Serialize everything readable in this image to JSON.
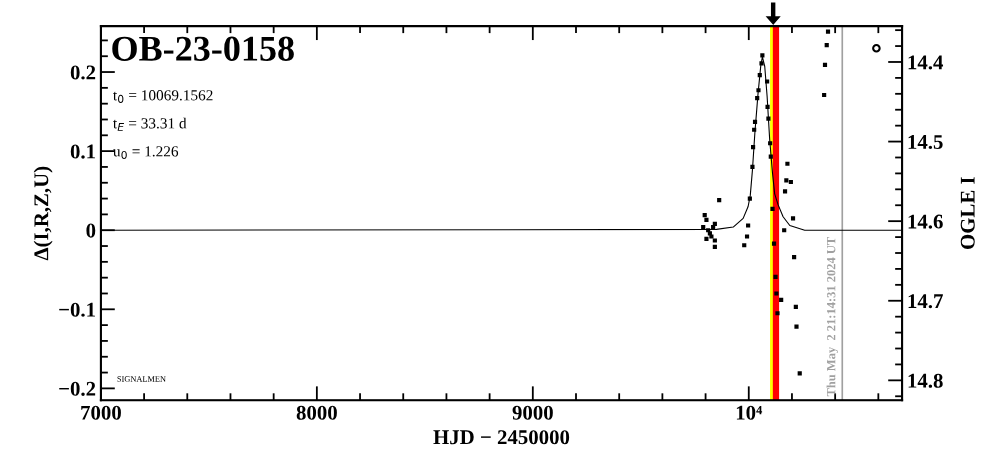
{
  "chart_data": {
    "type": "scatter",
    "title": "OB-23-0158",
    "xlabel": "HJD − 2450000",
    "ylabel": "Δ(I,R,Z,U)",
    "y2label": "OGLE I",
    "annotations": [
      "t$_{0}$ = 10069.1562",
      "t$_{E}$ = 33.31 d",
      "u$_{0}$ = 1.226",
      "SIGNALMEN",
      "Thu May  2 21:14:31 2024 UT"
    ],
    "xlim": [
      7000,
      10710
    ],
    "xticks": [
      7000,
      8000,
      9000,
      {
        "value": 10000,
        "label": "10⁴"
      }
    ],
    "ylim": [
      -0.215,
      0.258
    ],
    "yticks": [
      -0.2,
      -0.1,
      0,
      0.1,
      0.2
    ],
    "y2lim": [
      14.825,
      14.355
    ],
    "y2ticks": [
      14.4,
      14.5,
      14.6,
      14.7,
      14.8
    ],
    "grid": false,
    "legend": false,
    "series": [
      {
        "type": "line",
        "color": "#000000",
        "marker": "none",
        "line_style": "solid",
        "x": [
          7000,
          9850,
          9928,
          9974,
          9997,
          10007,
          10017,
          10028,
          10043,
          10056,
          10063,
          10074,
          10085,
          10097,
          10110,
          10120,
          10136,
          10159,
          10190,
          10259,
          10710
        ],
        "values": [
          0,
          0.001,
          0.004,
          0.015,
          0.03,
          0.044,
          0.076,
          0.122,
          0.173,
          0.209,
          0.219,
          0.207,
          0.169,
          0.114,
          0.072,
          0.046,
          0.032,
          0.017,
          0.006,
          0,
          0
        ]
      },
      {
        "color": "#000000",
        "marker": "square",
        "x": [
          9796,
          9804,
          9789,
          9812,
          9820,
          9827,
          9835,
          9843,
          9843,
          9843,
          9804,
          9863,
          9997,
          9992,
          9979,
          10005,
          10017,
          10020,
          10025,
          10029,
          10039,
          10045,
          10051,
          10059,
          10063,
          10085,
          10087,
          10091,
          10099,
          10102,
          10110,
          10117,
          10124,
          10128,
          10133,
          10150,
          10164,
          10168,
          10174,
          10179,
          10195,
          10205,
          10210,
          10218,
          10221,
          10236,
          10349,
          10353,
          10361,
          10367
        ],
        "values": [
          0.019,
          0.013,
          0.004,
          0,
          -0.004,
          -0.008,
          0.004,
          0.008,
          -0.013,
          -0.021,
          -0.011,
          0.038,
          0.006,
          -0.008,
          -0.019,
          0.04,
          0.08,
          0.105,
          0.127,
          0.137,
          0.167,
          0.177,
          0.196,
          0.211,
          0.221,
          0.188,
          0.156,
          0.141,
          0.11,
          0.093,
          0.027,
          -0.017,
          -0.059,
          -0.08,
          -0.105,
          -0.088,
          0,
          0.049,
          0.063,
          0.084,
          0.061,
          0.015,
          -0.034,
          -0.097,
          -0.122,
          -0.181,
          0.171,
          0.209,
          0.234,
          0.251
        ]
      },
      {
        "color": "#000000",
        "marker": "circle",
        "x": [
          10591
        ],
        "values": [
          0.23
        ]
      }
    ],
    "ref_lines": [
      {
        "axis": "x",
        "value": 10113,
        "color": "#ffff00"
      },
      {
        "axis": "x",
        "value": 10126,
        "color": "#ff0000"
      },
      {
        "axis": "x",
        "value": 10433,
        "color": "#a0a0a0",
        "line_style": "solid"
      }
    ]
  }
}
